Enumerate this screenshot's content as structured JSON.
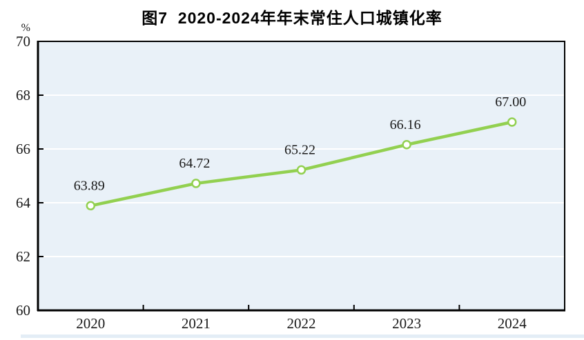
{
  "chart_data": {
    "type": "line",
    "title": "图7  2020-2024年年末常住人口城镇化率",
    "ylabel": "%",
    "xlabel": "",
    "categories": [
      "2020",
      "2021",
      "2022",
      "2023",
      "2024"
    ],
    "values": [
      63.89,
      64.72,
      65.22,
      66.16,
      67.0
    ],
    "value_labels": [
      "63.89",
      "64.72",
      "65.22",
      "66.16",
      "67.00"
    ],
    "ylim": [
      60,
      70
    ],
    "ytick_step": 2,
    "ytick_labels": [
      "60",
      "62",
      "64",
      "66",
      "68",
      "70"
    ],
    "grid": true,
    "legend": false
  },
  "colors": {
    "line": "#92d050",
    "marker_fill": "#ffffff",
    "marker_stroke": "#92d050",
    "plot_bg": "#e9f1f8",
    "grid": "#ffffff",
    "axis": "#000000",
    "text": "#1a1a1a",
    "shadow_band": "#e3edf6"
  }
}
